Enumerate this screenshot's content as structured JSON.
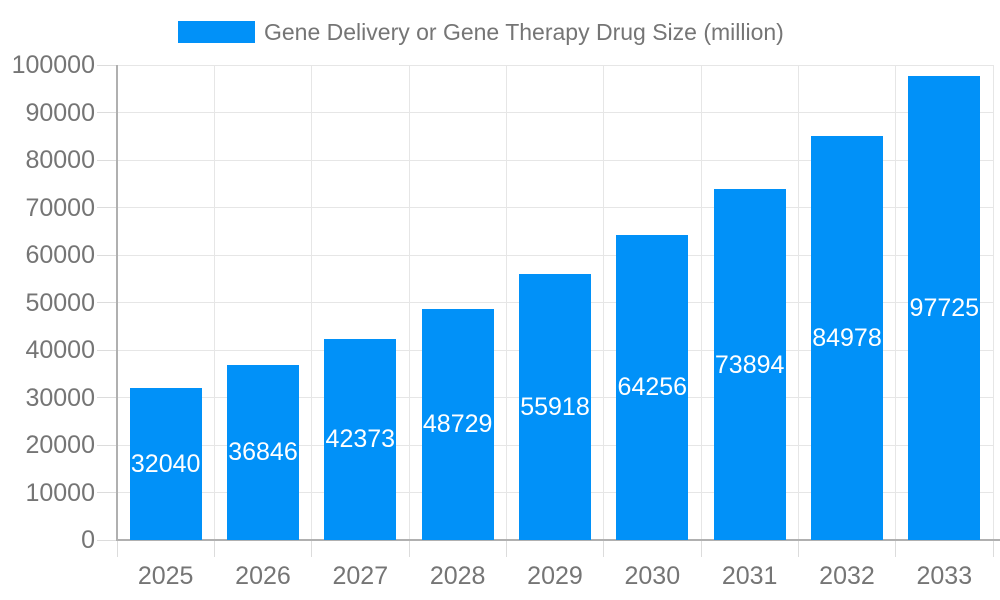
{
  "legend": {
    "label": "Gene Delivery or Gene Therapy Drug Size (million)",
    "swatch_color": "#0191f8"
  },
  "chart_data": {
    "type": "bar",
    "title": "Gene Delivery or Gene Therapy Drug Size (million)",
    "categories": [
      "2025",
      "2026",
      "2027",
      "2028",
      "2029",
      "2030",
      "2031",
      "2032",
      "2033"
    ],
    "series": [
      {
        "name": "Gene Delivery or Gene Therapy Drug Size (million)",
        "values": [
          32040,
          36846,
          42373,
          48729,
          55918,
          64256,
          73894,
          84978,
          97725
        ]
      }
    ],
    "xlabel": "",
    "ylabel": "",
    "ylim": [
      0,
      100000
    ],
    "ytick_interval": 10000,
    "yticks": [
      0,
      10000,
      20000,
      30000,
      40000,
      50000,
      60000,
      70000,
      80000,
      90000,
      100000
    ],
    "grid": true,
    "legend_position": "top",
    "bar_color": "#0191f8",
    "bar_label_color": "#ffffff",
    "bar_label_position": "center-inside",
    "axis_text_color": "#757575",
    "grid_color": "#e6e6e6",
    "tick_color": "#dcdcdc",
    "axis_line_color": "#b0b0b0",
    "background_color": "#ffffff"
  }
}
